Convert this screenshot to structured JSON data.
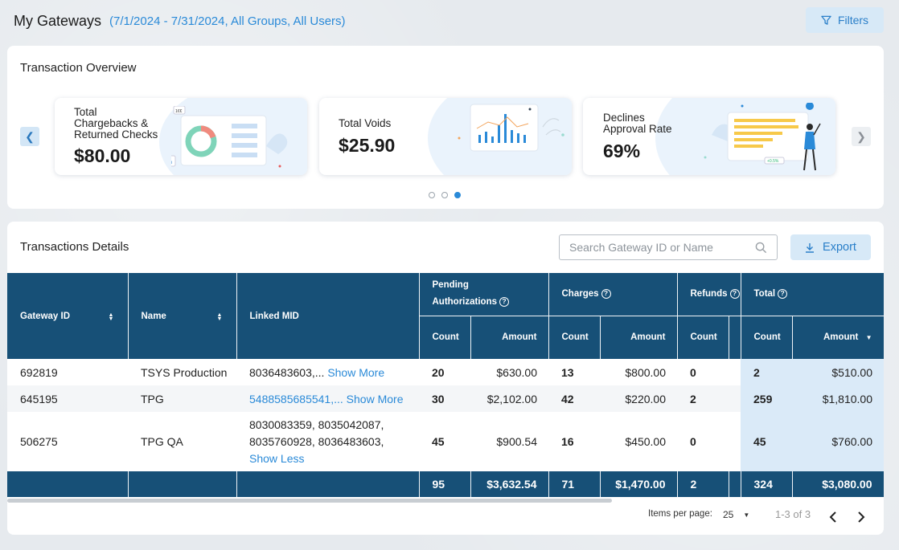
{
  "header": {
    "title": "My Gateways",
    "subtitle": "(7/1/2024 - 7/31/2024, All Groups, All Users)",
    "filters_label": "Filters"
  },
  "overview": {
    "title": "Transaction Overview",
    "cards": [
      {
        "label_lines": [
          "Total",
          "Chargebacks &",
          "Returned Checks"
        ],
        "value": "$80.00",
        "chip1": "1€€",
        "chip2": "%"
      },
      {
        "label_lines": [
          "Total Voids"
        ],
        "value": "$25.90"
      },
      {
        "label_lines": [
          "Declines",
          "Approval Rate"
        ],
        "value": "69%",
        "chip": "+0.5%"
      }
    ],
    "pagination_dots": 3,
    "active_dot": 3
  },
  "details": {
    "title": "Transactions Details",
    "search_placeholder": "Search Gateway ID or Name",
    "export_label": "Export",
    "columns": {
      "gateway_id": "Gateway ID",
      "name": "Name",
      "linked_mid": "Linked MID",
      "pending_line1": "Pending",
      "pending_line2": "Authorizations",
      "charges": "Charges",
      "refunds": "Refunds",
      "total": "Total",
      "count": "Count",
      "amount": "Amount"
    },
    "rows": [
      {
        "gateway_id": "692819",
        "name": "TSYS Production",
        "mid": "8036483603,...",
        "mid_action": "Show More",
        "pend_count": "20",
        "pend_amount": "$630.00",
        "chg_count": "13",
        "chg_amount": "$800.00",
        "ref_count": "0",
        "tot_count": "2",
        "tot_amount": "$510.00"
      },
      {
        "gateway_id": "645195",
        "name": "TPG",
        "mid": "5488585685541,...",
        "mid_action": "Show More",
        "pend_count": "30",
        "pend_amount": "$2,102.00",
        "chg_count": "42",
        "chg_amount": "$220.00",
        "ref_count": "2",
        "tot_count": "259",
        "tot_amount": "$1,810.00"
      },
      {
        "gateway_id": "506275",
        "name": "TPG QA",
        "mid_lines": [
          "8030083359, 8035042087,",
          "8035760928, 8036483603,"
        ],
        "mid_action": "Show Less",
        "pend_count": "45",
        "pend_amount": "$900.54",
        "chg_count": "16",
        "chg_amount": "$450.00",
        "ref_count": "0",
        "tot_count": "45",
        "tot_amount": "$760.00"
      }
    ],
    "totals": {
      "pend_count": "95",
      "pend_amount": "$3,632.54",
      "chg_count": "71",
      "chg_amount": "$1,470.00",
      "ref_count": "2",
      "tot_count": "324",
      "tot_amount": "$3,080.00"
    },
    "pager": {
      "items_per_page_label": "Items per page:",
      "items_per_page": "25",
      "range": "1-3 of 3"
    }
  },
  "colors": {
    "header_bg": "#175077",
    "accent": "#2a8ad8",
    "total_bg": "#daeaf8"
  }
}
